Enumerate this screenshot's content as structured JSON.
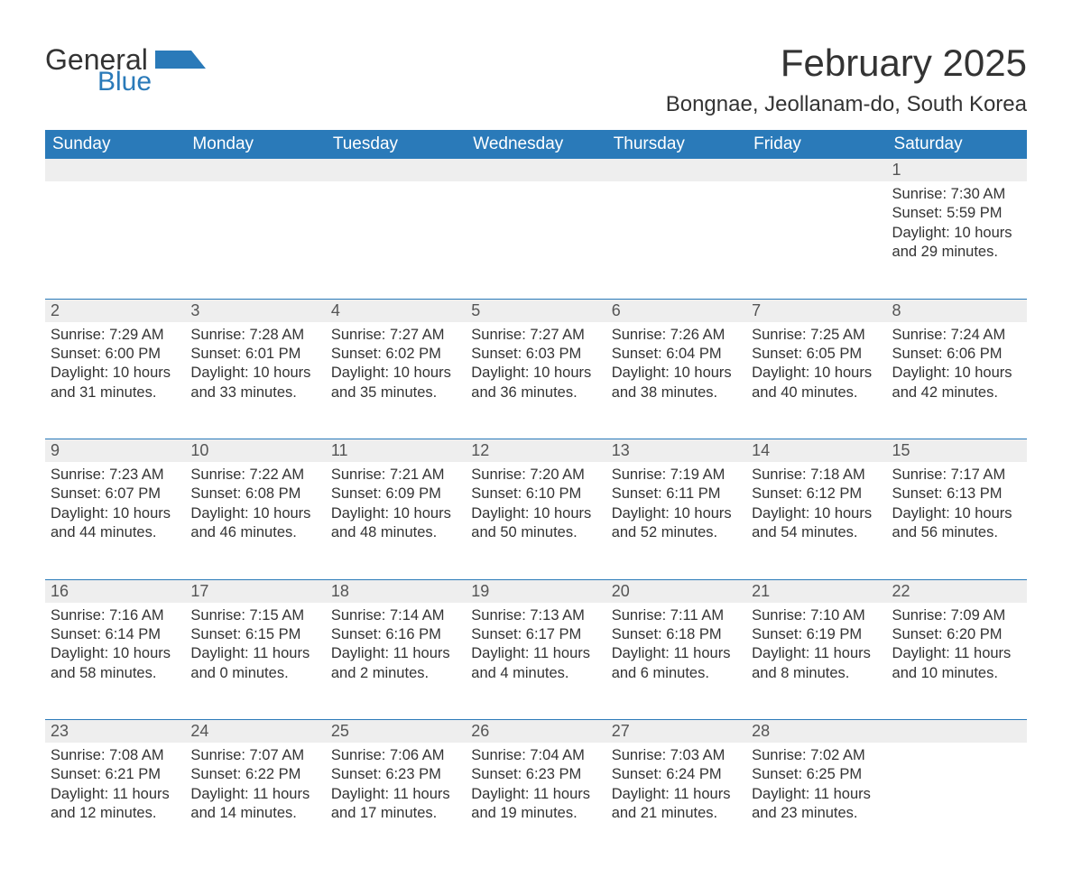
{
  "logo": {
    "text1": "General",
    "text2": "Blue",
    "accent_color": "#2a7ab9"
  },
  "title": "February 2025",
  "location": "Bongnae, Jeollanam-do, South Korea",
  "weekday_headers": [
    "Sunday",
    "Monday",
    "Tuesday",
    "Wednesday",
    "Thursday",
    "Friday",
    "Saturday"
  ],
  "colors": {
    "header_bg": "#2a7ab9",
    "header_fg": "#ffffff",
    "daynum_bg": "#eeeeee",
    "daynum_border": "#2a7ab9",
    "text": "#333333"
  },
  "weeks": [
    [
      null,
      null,
      null,
      null,
      null,
      null,
      {
        "day": "1",
        "sunrise": "Sunrise: 7:30 AM",
        "sunset": "Sunset: 5:59 PM",
        "daylight": "Daylight: 10 hours and 29 minutes."
      }
    ],
    [
      {
        "day": "2",
        "sunrise": "Sunrise: 7:29 AM",
        "sunset": "Sunset: 6:00 PM",
        "daylight": "Daylight: 10 hours and 31 minutes."
      },
      {
        "day": "3",
        "sunrise": "Sunrise: 7:28 AM",
        "sunset": "Sunset: 6:01 PM",
        "daylight": "Daylight: 10 hours and 33 minutes."
      },
      {
        "day": "4",
        "sunrise": "Sunrise: 7:27 AM",
        "sunset": "Sunset: 6:02 PM",
        "daylight": "Daylight: 10 hours and 35 minutes."
      },
      {
        "day": "5",
        "sunrise": "Sunrise: 7:27 AM",
        "sunset": "Sunset: 6:03 PM",
        "daylight": "Daylight: 10 hours and 36 minutes."
      },
      {
        "day": "6",
        "sunrise": "Sunrise: 7:26 AM",
        "sunset": "Sunset: 6:04 PM",
        "daylight": "Daylight: 10 hours and 38 minutes."
      },
      {
        "day": "7",
        "sunrise": "Sunrise: 7:25 AM",
        "sunset": "Sunset: 6:05 PM",
        "daylight": "Daylight: 10 hours and 40 minutes."
      },
      {
        "day": "8",
        "sunrise": "Sunrise: 7:24 AM",
        "sunset": "Sunset: 6:06 PM",
        "daylight": "Daylight: 10 hours and 42 minutes."
      }
    ],
    [
      {
        "day": "9",
        "sunrise": "Sunrise: 7:23 AM",
        "sunset": "Sunset: 6:07 PM",
        "daylight": "Daylight: 10 hours and 44 minutes."
      },
      {
        "day": "10",
        "sunrise": "Sunrise: 7:22 AM",
        "sunset": "Sunset: 6:08 PM",
        "daylight": "Daylight: 10 hours and 46 minutes."
      },
      {
        "day": "11",
        "sunrise": "Sunrise: 7:21 AM",
        "sunset": "Sunset: 6:09 PM",
        "daylight": "Daylight: 10 hours and 48 minutes."
      },
      {
        "day": "12",
        "sunrise": "Sunrise: 7:20 AM",
        "sunset": "Sunset: 6:10 PM",
        "daylight": "Daylight: 10 hours and 50 minutes."
      },
      {
        "day": "13",
        "sunrise": "Sunrise: 7:19 AM",
        "sunset": "Sunset: 6:11 PM",
        "daylight": "Daylight: 10 hours and 52 minutes."
      },
      {
        "day": "14",
        "sunrise": "Sunrise: 7:18 AM",
        "sunset": "Sunset: 6:12 PM",
        "daylight": "Daylight: 10 hours and 54 minutes."
      },
      {
        "day": "15",
        "sunrise": "Sunrise: 7:17 AM",
        "sunset": "Sunset: 6:13 PM",
        "daylight": "Daylight: 10 hours and 56 minutes."
      }
    ],
    [
      {
        "day": "16",
        "sunrise": "Sunrise: 7:16 AM",
        "sunset": "Sunset: 6:14 PM",
        "daylight": "Daylight: 10 hours and 58 minutes."
      },
      {
        "day": "17",
        "sunrise": "Sunrise: 7:15 AM",
        "sunset": "Sunset: 6:15 PM",
        "daylight": "Daylight: 11 hours and 0 minutes."
      },
      {
        "day": "18",
        "sunrise": "Sunrise: 7:14 AM",
        "sunset": "Sunset: 6:16 PM",
        "daylight": "Daylight: 11 hours and 2 minutes."
      },
      {
        "day": "19",
        "sunrise": "Sunrise: 7:13 AM",
        "sunset": "Sunset: 6:17 PM",
        "daylight": "Daylight: 11 hours and 4 minutes."
      },
      {
        "day": "20",
        "sunrise": "Sunrise: 7:11 AM",
        "sunset": "Sunset: 6:18 PM",
        "daylight": "Daylight: 11 hours and 6 minutes."
      },
      {
        "day": "21",
        "sunrise": "Sunrise: 7:10 AM",
        "sunset": "Sunset: 6:19 PM",
        "daylight": "Daylight: 11 hours and 8 minutes."
      },
      {
        "day": "22",
        "sunrise": "Sunrise: 7:09 AM",
        "sunset": "Sunset: 6:20 PM",
        "daylight": "Daylight: 11 hours and 10 minutes."
      }
    ],
    [
      {
        "day": "23",
        "sunrise": "Sunrise: 7:08 AM",
        "sunset": "Sunset: 6:21 PM",
        "daylight": "Daylight: 11 hours and 12 minutes."
      },
      {
        "day": "24",
        "sunrise": "Sunrise: 7:07 AM",
        "sunset": "Sunset: 6:22 PM",
        "daylight": "Daylight: 11 hours and 14 minutes."
      },
      {
        "day": "25",
        "sunrise": "Sunrise: 7:06 AM",
        "sunset": "Sunset: 6:23 PM",
        "daylight": "Daylight: 11 hours and 17 minutes."
      },
      {
        "day": "26",
        "sunrise": "Sunrise: 7:04 AM",
        "sunset": "Sunset: 6:23 PM",
        "daylight": "Daylight: 11 hours and 19 minutes."
      },
      {
        "day": "27",
        "sunrise": "Sunrise: 7:03 AM",
        "sunset": "Sunset: 6:24 PM",
        "daylight": "Daylight: 11 hours and 21 minutes."
      },
      {
        "day": "28",
        "sunrise": "Sunrise: 7:02 AM",
        "sunset": "Sunset: 6:25 PM",
        "daylight": "Daylight: 11 hours and 23 minutes."
      },
      null
    ]
  ]
}
